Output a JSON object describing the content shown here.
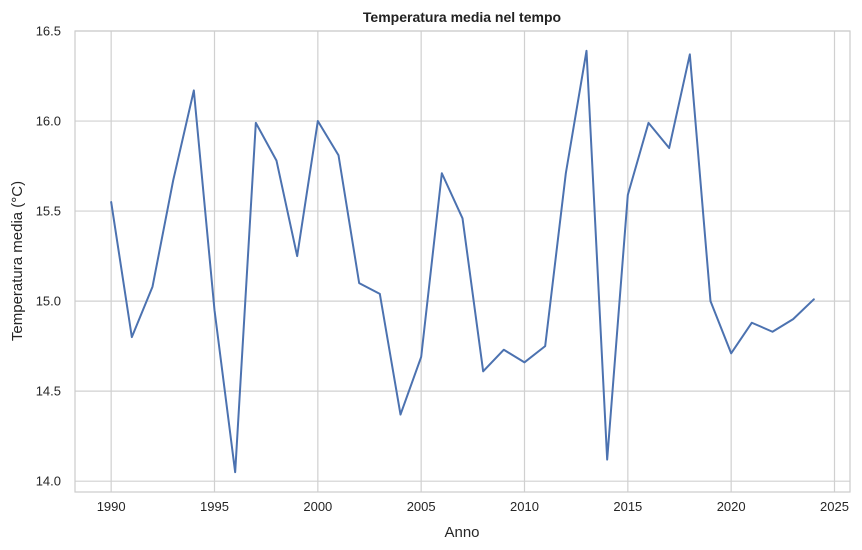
{
  "chart_data": {
    "type": "line",
    "title": "Temperatura media nel tempo",
    "xlabel": "Anno",
    "ylabel": "Temperatura media (°C)",
    "xlim": [
      1988.25,
      2025.75
    ],
    "ylim": [
      13.94,
      16.5
    ],
    "xticks": [
      1990,
      1995,
      2000,
      2005,
      2010,
      2015,
      2020,
      2025
    ],
    "yticks": [
      14.0,
      14.5,
      15.0,
      15.5,
      16.0,
      16.5
    ],
    "ytick_labels": [
      "14.0",
      "14.5",
      "15.0",
      "15.5",
      "16.0",
      "16.5"
    ],
    "grid": true,
    "series": [
      {
        "color": "#4c72b0",
        "x": [
          1990,
          1991,
          1992,
          1993,
          1994,
          1995,
          1996,
          1997,
          1998,
          1999,
          2000,
          2001,
          2002,
          2003,
          2004,
          2005,
          2006,
          2007,
          2008,
          2009,
          2010,
          2011,
          2012,
          2013,
          2014,
          2015,
          2016,
          2017,
          2018,
          2019,
          2020,
          2021,
          2022,
          2023,
          2024
        ],
        "y": [
          15.55,
          14.8,
          15.08,
          15.67,
          16.17,
          14.95,
          14.05,
          15.99,
          15.78,
          15.25,
          16.0,
          15.81,
          15.1,
          15.04,
          14.37,
          14.69,
          15.71,
          15.46,
          14.61,
          14.73,
          14.66,
          14.75,
          15.71,
          16.39,
          14.12,
          15.59,
          15.99,
          15.85,
          16.37,
          15.0,
          14.71,
          14.88,
          14.83,
          14.9,
          15.01
        ]
      }
    ]
  }
}
